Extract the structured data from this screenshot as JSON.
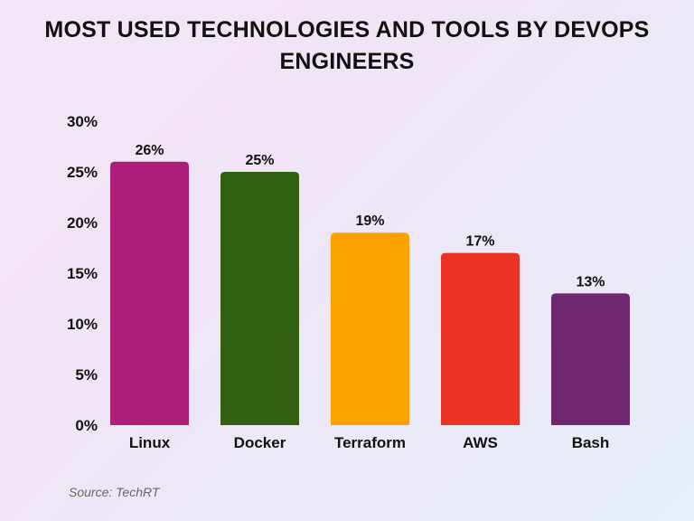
{
  "chart_data": {
    "type": "bar",
    "title": "MOST USED TECHNOLOGIES AND TOOLS BY DEVOPS ENGINEERS",
    "categories": [
      "Linux",
      "Docker",
      "Terraform",
      "AWS",
      "Bash"
    ],
    "values": [
      26,
      25,
      19,
      17,
      13
    ],
    "data_labels": [
      "26%",
      "25%",
      "19%",
      "17%",
      "13%"
    ],
    "colors": [
      "#ad1e78",
      "#326012",
      "#fba200",
      "#e93323",
      "#6f2870"
    ],
    "yticks": [
      0,
      5,
      10,
      15,
      20,
      25,
      30
    ],
    "ytick_labels": [
      "0%",
      "5%",
      "10%",
      "15%",
      "20%",
      "25%",
      "30%"
    ],
    "ylim": [
      0,
      30
    ],
    "xlabel": "",
    "ylabel": "",
    "grid": false,
    "legend": "none"
  },
  "source": "Source: TechRT"
}
